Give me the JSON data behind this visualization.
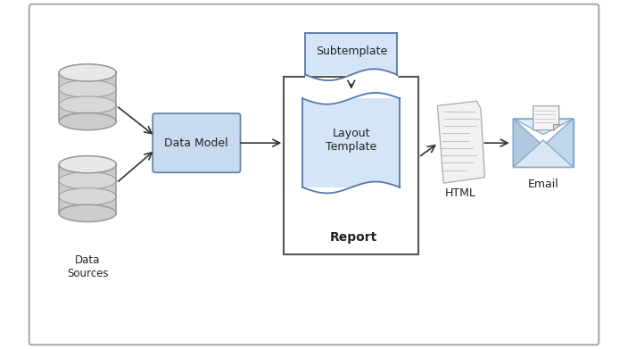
{
  "bg_color": "#ffffff",
  "outer_border_color": "#aaaaaa",
  "box_fill": "#d4e5f7",
  "box_fill_light": "#e8f2fc",
  "box_edge": "#5577aa",
  "cylinder_body": "#cccccc",
  "cylinder_mid": "#d8d8d8",
  "cylinder_top": "#e8e8e8",
  "cylinder_edge": "#999999",
  "arrow_color": "#333333",
  "text_color": "#222222",
  "report_border": "#555555",
  "dm_fill": "#c8daf0",
  "dm_edge": "#6688aa",
  "labels": {
    "data_sources": "Data\nSources",
    "data_model": "Data Model",
    "subtemplate": "Subtemplate",
    "layout_template": "Layout\nTemplate",
    "report": "Report",
    "html": "HTML",
    "email": "Email"
  },
  "figsize": [
    7.04,
    3.91
  ],
  "dpi": 100
}
